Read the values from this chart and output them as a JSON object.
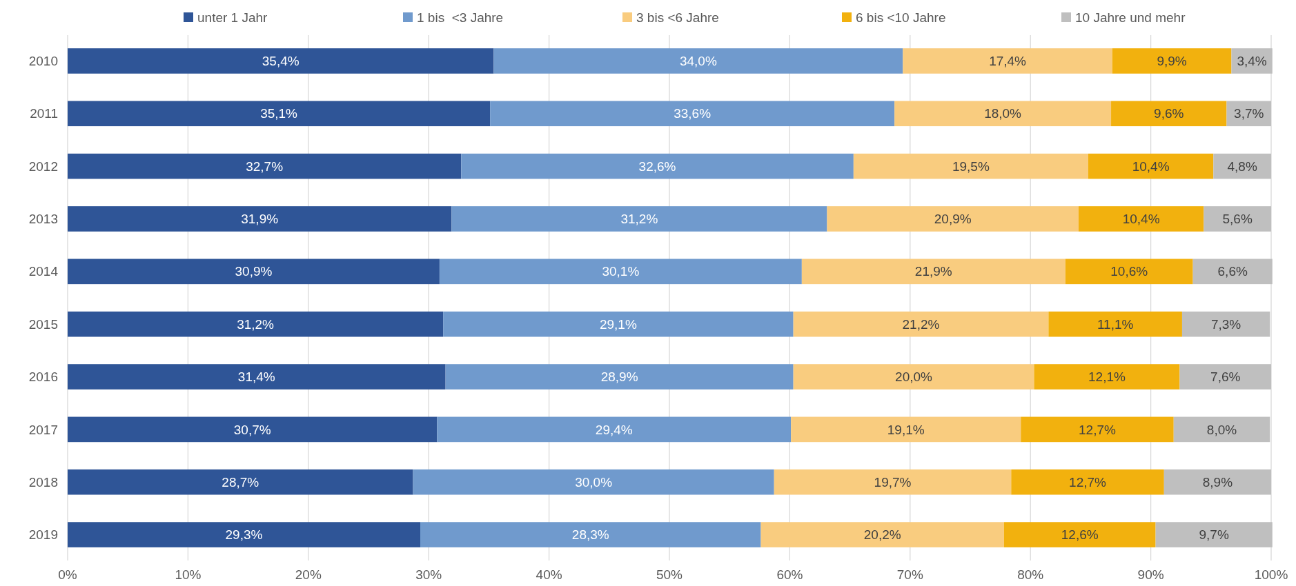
{
  "chart_data": {
    "type": "bar",
    "orientation": "horizontal",
    "stacked": true,
    "categories": [
      "2010",
      "2011",
      "2012",
      "2013",
      "2014",
      "2015",
      "2016",
      "2017",
      "2018",
      "2019"
    ],
    "series": [
      {
        "name": "unter 1 Jahr",
        "color": "#2f5597",
        "values": [
          35.4,
          35.1,
          32.7,
          31.9,
          30.9,
          31.2,
          31.4,
          30.7,
          28.7,
          29.3
        ],
        "value_labels": [
          "35,4%",
          "35,1%",
          "32,7%",
          "31,9%",
          "30,9%",
          "31,2%",
          "31,4%",
          "30,7%",
          "28,7%",
          "29,3%"
        ]
      },
      {
        "name": "1 bis  <3 Jahre",
        "color": "#709acd",
        "values": [
          34.0,
          33.6,
          32.6,
          31.2,
          30.1,
          29.1,
          28.9,
          29.4,
          30.0,
          28.3
        ],
        "value_labels": [
          "34,0%",
          "33,6%",
          "32,6%",
          "31,2%",
          "30,1%",
          "29,1%",
          "28,9%",
          "29,4%",
          "30,0%",
          "28,3%"
        ]
      },
      {
        "name": "3 bis <6 Jahre",
        "color": "#f9cc7f",
        "values": [
          17.4,
          18.0,
          19.5,
          20.9,
          21.9,
          21.2,
          20.0,
          19.1,
          19.7,
          20.2
        ],
        "value_labels": [
          "17,4%",
          "18,0%",
          "19,5%",
          "20,9%",
          "21,9%",
          "21,2%",
          "20,0%",
          "19,1%",
          "19,7%",
          "20,2%"
        ]
      },
      {
        "name": "6 bis <10 Jahre",
        "color": "#f2b10e",
        "values": [
          9.9,
          9.6,
          10.4,
          10.4,
          10.6,
          11.1,
          12.1,
          12.7,
          12.7,
          12.6
        ],
        "value_labels": [
          "9,9%",
          "9,6%",
          "10,4%",
          "10,4%",
          "10,6%",
          "11,1%",
          "12,1%",
          "12,7%",
          "12,7%",
          "12,6%"
        ]
      },
      {
        "name": "10 Jahre und mehr",
        "color": "#bfbfbf",
        "values": [
          3.4,
          3.7,
          4.8,
          5.6,
          6.6,
          7.3,
          7.6,
          8.0,
          8.9,
          9.7
        ],
        "value_labels": [
          "3,4%",
          "3,7%",
          "4,8%",
          "5,6%",
          "6,6%",
          "7,3%",
          "7,6%",
          "8,0%",
          "8,9%",
          "9,7%"
        ]
      }
    ],
    "xlim": [
      0,
      100
    ],
    "xticks": [
      {
        "value": 0,
        "label": "0%"
      },
      {
        "value": 10,
        "label": "10%"
      },
      {
        "value": 20,
        "label": "20%"
      },
      {
        "value": 30,
        "label": "30%"
      },
      {
        "value": 40,
        "label": "40%"
      },
      {
        "value": 50,
        "label": "50%"
      },
      {
        "value": 60,
        "label": "60%"
      },
      {
        "value": 70,
        "label": "70%"
      },
      {
        "value": 80,
        "label": "80%"
      },
      {
        "value": 90,
        "label": "90%"
      },
      {
        "value": 100,
        "label": "100%"
      }
    ],
    "grid": "x",
    "legend": "top"
  }
}
